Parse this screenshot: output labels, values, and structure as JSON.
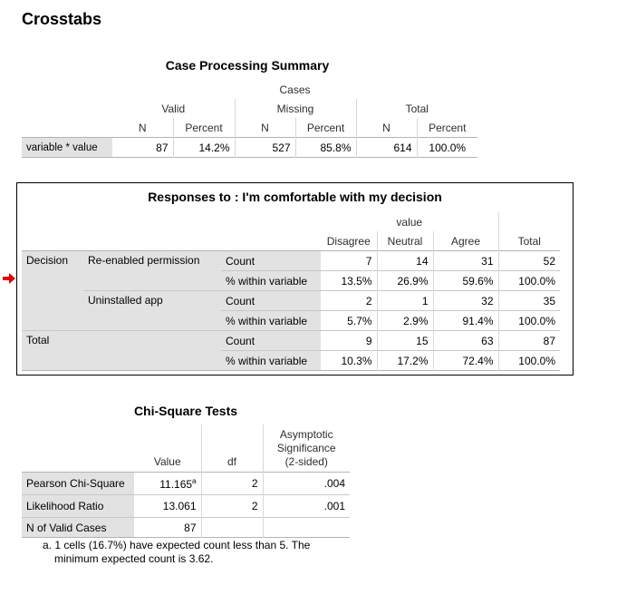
{
  "page_title": "Crosstabs",
  "case_summary": {
    "title": "Case Processing Summary",
    "cases_label": "Cases",
    "groups": [
      "Valid",
      "Missing",
      "Total"
    ],
    "subheaders": [
      "N",
      "Percent",
      "N",
      "Percent",
      "N",
      "Percent"
    ],
    "row_label": "variable * value",
    "values": [
      "87",
      "14.2%",
      "527",
      "85.8%",
      "614",
      "100.0%"
    ]
  },
  "crosstab": {
    "title": "Responses to : I'm comfortable with my decision",
    "col_group": "value",
    "columns": [
      "Disagree",
      "Neutral",
      "Agree",
      "Total"
    ],
    "row_group": "Decision",
    "rows": [
      {
        "label": "Re-enabled permission",
        "count_label": "Count",
        "pct_label": "% within variable",
        "counts": [
          "7",
          "14",
          "31",
          "52"
        ],
        "pcts": [
          "13.5%",
          "26.9%",
          "59.6%",
          "100.0%"
        ]
      },
      {
        "label": "Uninstalled app",
        "count_label": "Count",
        "pct_label": "% within variable",
        "counts": [
          "2",
          "1",
          "32",
          "35"
        ],
        "pcts": [
          "5.7%",
          "2.9%",
          "91.4%",
          "100.0%"
        ]
      }
    ],
    "total": {
      "label": "Total",
      "count_label": "Count",
      "pct_label": "% within variable",
      "counts": [
        "9",
        "15",
        "63",
        "87"
      ],
      "pcts": [
        "10.3%",
        "17.2%",
        "72.4%",
        "100.0%"
      ]
    }
  },
  "chi_square": {
    "title": "Chi-Square Tests",
    "headers": [
      "Value",
      "df",
      "Asymptotic",
      "Significance",
      "(2-sided)"
    ],
    "rows": [
      {
        "label": "Pearson Chi-Square",
        "value": "11.165",
        "sup": "a",
        "df": "2",
        "sig": ".004"
      },
      {
        "label": "Likelihood Ratio",
        "value": "13.061",
        "df": "2",
        "sig": ".001"
      },
      {
        "label": "N of Valid Cases",
        "value": "87"
      }
    ],
    "footnote_line1": "a. 1 cells (16.7%) have expected count less than 5. The",
    "footnote_line2": "minimum expected count is 3.62."
  },
  "colors": {
    "label_bg": "#e2e2e2",
    "arrow": "#e00000"
  },
  "icons": {
    "selection_marker": "red-arrow-icon"
  }
}
